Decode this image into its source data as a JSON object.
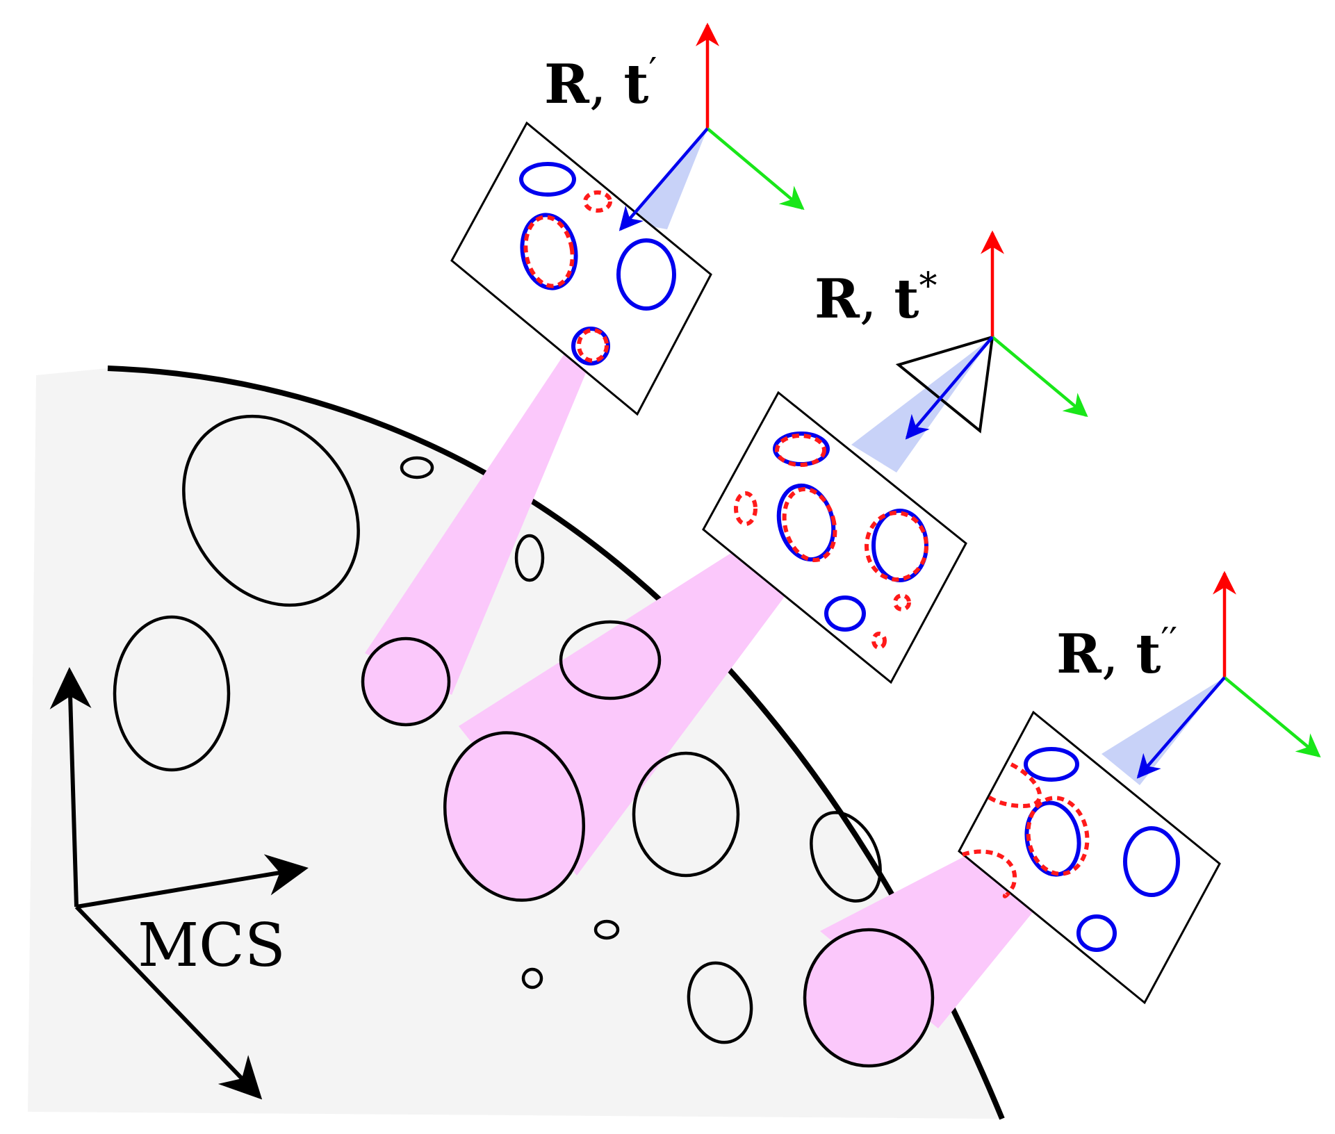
{
  "figure": {
    "frame_label": "MCS",
    "poses": [
      {
        "rotation": "R",
        "separator": ", ",
        "translation": "t",
        "mark": "′"
      },
      {
        "rotation": "R",
        "separator": ", ",
        "translation": "t",
        "mark": "*"
      },
      {
        "rotation": "R",
        "separator": ", ",
        "translation": "t",
        "mark": "′′"
      }
    ]
  },
  "colors": {
    "surface": "#f4f4f4",
    "outline": "#000000",
    "detected": "#0000ee",
    "projected": "#ff1a1a",
    "axis_x": "#ff0000",
    "axis_y": "#19e619",
    "axis_z": "#0000ee",
    "match_fill": "#fbc8fb",
    "view_cone": "#c8d2f8"
  }
}
